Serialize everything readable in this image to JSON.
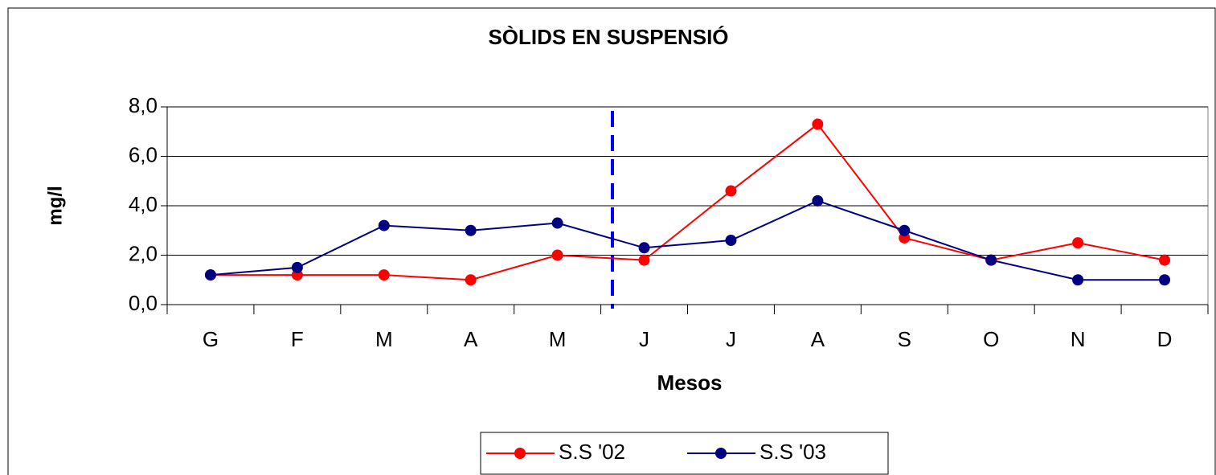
{
  "chart_data": {
    "type": "line",
    "title": "SÒLIDS EN SUSPENSIÓ",
    "x_label": "Mesos",
    "y_label": "mg/l",
    "categories": [
      "G",
      "F",
      "M",
      "A",
      "M",
      "J",
      "J",
      "A",
      "S",
      "O",
      "N",
      "D"
    ],
    "series": [
      {
        "name": "S.S '02",
        "color": "#ff0000",
        "values": [
          1.2,
          1.2,
          1.2,
          1.0,
          2.0,
          1.8,
          4.6,
          7.3,
          2.7,
          1.8,
          2.5,
          1.8
        ]
      },
      {
        "name": "S.S '03",
        "color": "#000080",
        "values": [
          1.2,
          1.5,
          3.2,
          3.0,
          3.3,
          2.3,
          2.6,
          4.2,
          3.0,
          1.8,
          1.0,
          1.0
        ]
      }
    ],
    "ylim": [
      0,
      8
    ],
    "yticks": [
      {
        "value": 0,
        "label": "0,0"
      },
      {
        "value": 2,
        "label": "2,0"
      },
      {
        "value": 4,
        "label": "4,0"
      },
      {
        "value": 6,
        "label": "6,0"
      },
      {
        "value": 8,
        "label": "8,0"
      }
    ],
    "grid": true,
    "legend": "bottom"
  }
}
